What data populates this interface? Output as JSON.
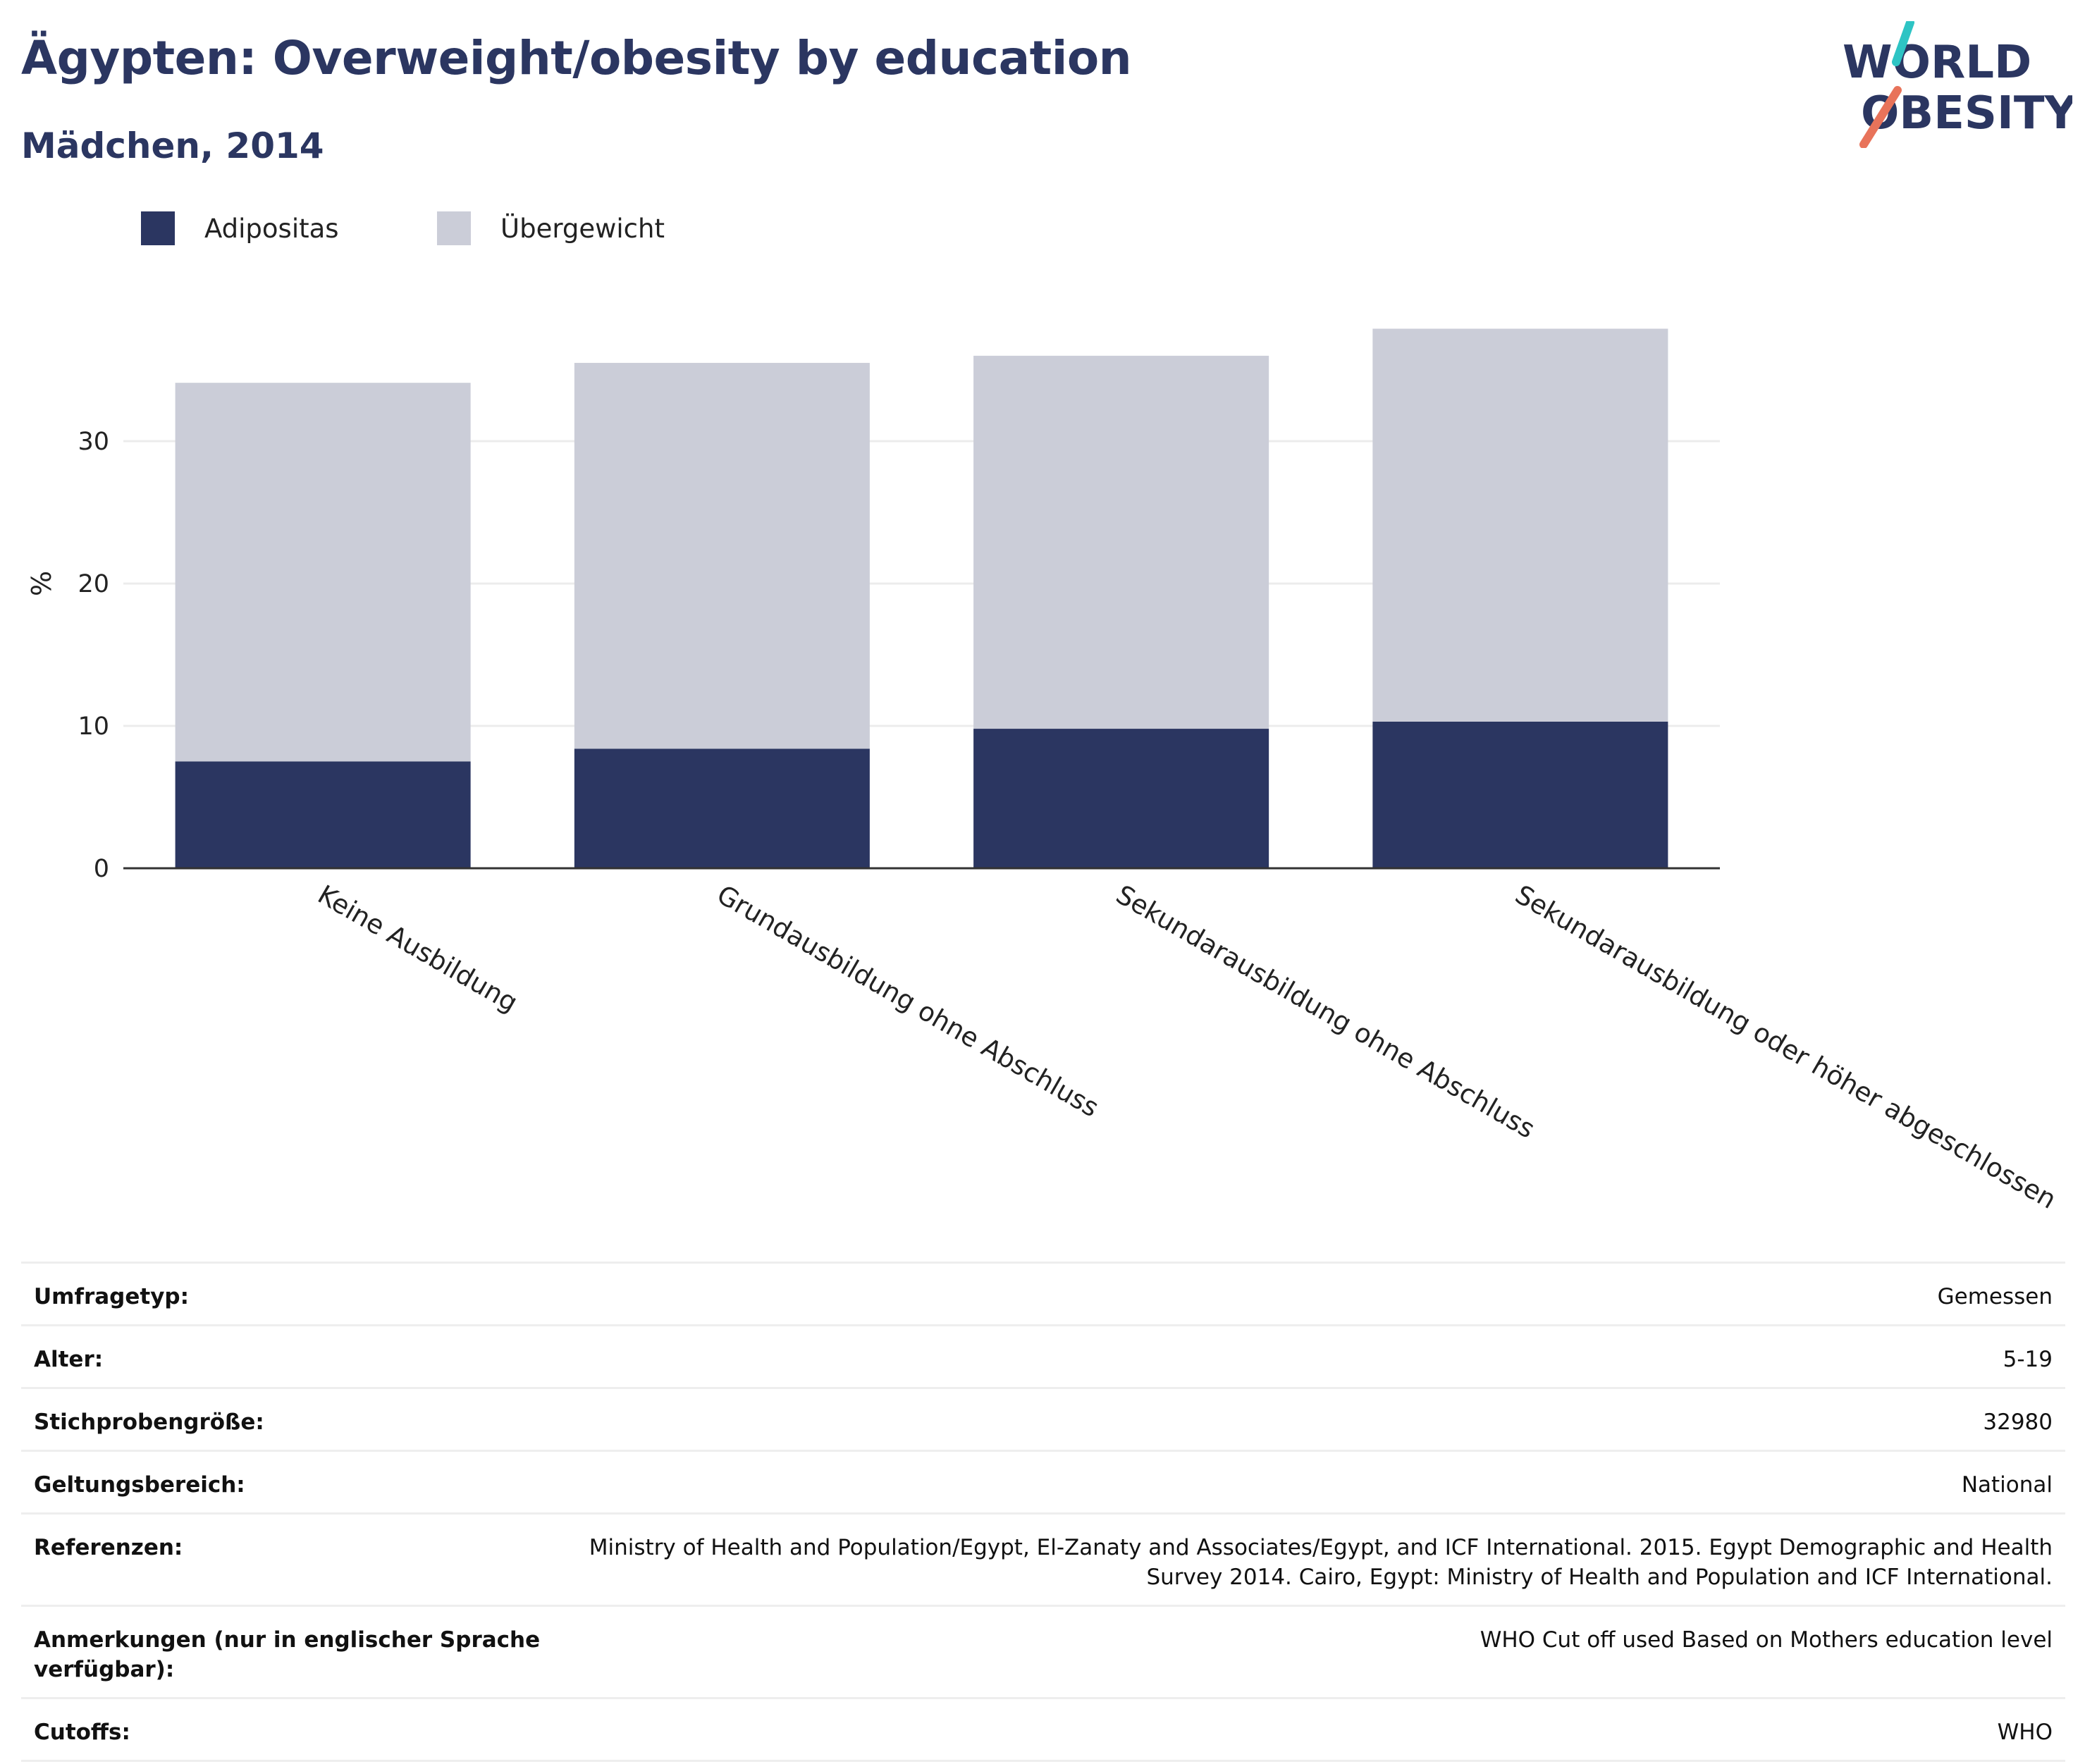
{
  "header": {
    "title": "Ägypten: Overweight/obesity by education",
    "subtitle": "Mädchen, 2014"
  },
  "logo": {
    "line1": "WORLD",
    "line2": "OBESITY",
    "accent_teal": "#2ec4c4",
    "accent_coral": "#e8735a"
  },
  "colors": {
    "obesity": "#2b3661",
    "overweight": "#cbcdd8",
    "text": "#2b3661"
  },
  "chart_data": {
    "type": "bar",
    "stacked": true,
    "categories": [
      "Keine Ausbildung",
      "Grundausbildung ohne Abschluss",
      "Sekundarausbildung ohne Abschluss",
      "Sekundarausbildung oder höher abgeschlossen"
    ],
    "series": [
      {
        "name": "Adipositas",
        "color": "#2b3661",
        "values": [
          7.5,
          8.4,
          9.8,
          10.3
        ]
      },
      {
        "name": "Übergewicht",
        "color": "#cbcdd8",
        "values": [
          26.6,
          27.1,
          26.2,
          27.6
        ]
      }
    ],
    "ylabel": "%",
    "xlabel": "",
    "ylim": [
      0,
      40
    ],
    "yticks": [
      0,
      10,
      20,
      30
    ],
    "grid": true,
    "legend_position": "top-left"
  },
  "meta": {
    "rows": [
      {
        "label": "Umfragetyp:",
        "value": "Gemessen"
      },
      {
        "label": "Alter:",
        "value": "5-19"
      },
      {
        "label": "Stichprobengröße:",
        "value": "32980"
      },
      {
        "label": "Geltungsbereich:",
        "value": "National"
      },
      {
        "label": "Referenzen:",
        "value": "Ministry of Health and Population/Egypt, El-Zanaty and Associates/Egypt, and ICF International. 2015. Egypt Demographic and Health Survey 2014. Cairo, Egypt: Ministry of Health and Population and ICF International."
      },
      {
        "label": "Anmerkungen (nur in englischer Sprache verfügbar):",
        "value": "WHO Cut off used Based on Mothers education level"
      },
      {
        "label": "Cutoffs:",
        "value": "WHO"
      }
    ]
  }
}
